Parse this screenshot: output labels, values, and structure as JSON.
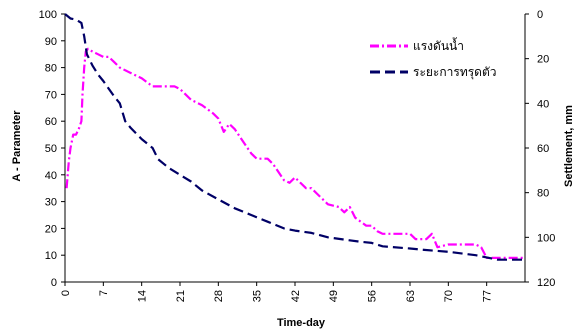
{
  "chart_data": {
    "type": "line",
    "xlabel": "Time-day",
    "ylabel_left": "A - Parameter",
    "ylabel_right": "Settlement, mm",
    "xlim": [
      0,
      84
    ],
    "ylim_left": [
      0,
      100
    ],
    "ylim_right_inverted": [
      0,
      120
    ],
    "x_ticks": [
      0,
      7,
      14,
      21,
      28,
      35,
      42,
      49,
      56,
      63,
      70,
      77
    ],
    "y_ticks_left": [
      0,
      10,
      20,
      30,
      40,
      50,
      60,
      70,
      80,
      90,
      100
    ],
    "y_ticks_right": [
      0,
      20,
      40,
      60,
      80,
      100,
      120
    ],
    "grid": false,
    "legend_position": "top-right",
    "series": [
      {
        "name": "แรงดันน้ำ",
        "axis": "left",
        "color": "#ff00ff",
        "dash": "dash-dot",
        "points": [
          [
            0.3,
            35
          ],
          [
            0.7,
            45
          ],
          [
            1,
            50
          ],
          [
            1.5,
            55
          ],
          [
            2,
            55
          ],
          [
            2.5,
            57
          ],
          [
            3,
            60
          ],
          [
            3.2,
            70
          ],
          [
            3.5,
            80
          ],
          [
            3.8,
            86
          ],
          [
            4.2,
            87
          ],
          [
            5,
            86
          ],
          [
            6,
            85
          ],
          [
            7,
            84
          ],
          [
            8,
            84
          ],
          [
            9,
            82
          ],
          [
            10,
            80
          ],
          [
            12,
            78
          ],
          [
            14,
            76
          ],
          [
            16,
            73
          ],
          [
            18,
            73
          ],
          [
            20,
            73
          ],
          [
            21,
            72
          ],
          [
            23,
            68
          ],
          [
            25,
            66
          ],
          [
            27,
            63
          ],
          [
            28,
            61
          ],
          [
            29,
            56
          ],
          [
            30,
            59
          ],
          [
            31,
            57
          ],
          [
            32,
            54
          ],
          [
            34,
            48
          ],
          [
            35,
            46
          ],
          [
            37,
            46
          ],
          [
            38,
            44
          ],
          [
            40,
            38
          ],
          [
            41,
            37
          ],
          [
            42,
            39
          ],
          [
            44,
            35
          ],
          [
            45,
            35
          ],
          [
            46,
            33
          ],
          [
            48,
            29
          ],
          [
            50,
            28
          ],
          [
            51,
            26
          ],
          [
            52,
            28
          ],
          [
            53,
            24
          ],
          [
            55,
            21
          ],
          [
            56,
            21
          ],
          [
            57,
            19
          ],
          [
            58,
            18
          ],
          [
            63,
            18
          ],
          [
            64,
            16
          ],
          [
            66,
            16
          ],
          [
            67,
            18
          ],
          [
            68,
            13
          ],
          [
            70,
            14
          ],
          [
            75,
            14
          ],
          [
            76,
            13
          ],
          [
            77,
            9
          ],
          [
            84,
            9
          ]
        ]
      },
      {
        "name": "ระยะการทรุดตัว",
        "axis": "right",
        "color": "#000066",
        "dash": "dashed",
        "points": [
          [
            0,
            0
          ],
          [
            1,
            2
          ],
          [
            2,
            2.5
          ],
          [
            3,
            4
          ],
          [
            3.5,
            10
          ],
          [
            4,
            18
          ],
          [
            5,
            23
          ],
          [
            6,
            27
          ],
          [
            7,
            30
          ],
          [
            9,
            37
          ],
          [
            10,
            40
          ],
          [
            11,
            48
          ],
          [
            12,
            51
          ],
          [
            14,
            56
          ],
          [
            16,
            60
          ],
          [
            17,
            65
          ],
          [
            19,
            69
          ],
          [
            21,
            72
          ],
          [
            23,
            75
          ],
          [
            25,
            79
          ],
          [
            28,
            83
          ],
          [
            31,
            87
          ],
          [
            34,
            90
          ],
          [
            37,
            93
          ],
          [
            40,
            96
          ],
          [
            42,
            97
          ],
          [
            45,
            98
          ],
          [
            48,
            100
          ],
          [
            51,
            101
          ],
          [
            54,
            102
          ],
          [
            56,
            102.5
          ],
          [
            58,
            104
          ],
          [
            63,
            105
          ],
          [
            65,
            105.5
          ],
          [
            70,
            106.5
          ],
          [
            75,
            108
          ],
          [
            77,
            109
          ],
          [
            79,
            110
          ],
          [
            84,
            110
          ]
        ]
      }
    ]
  }
}
